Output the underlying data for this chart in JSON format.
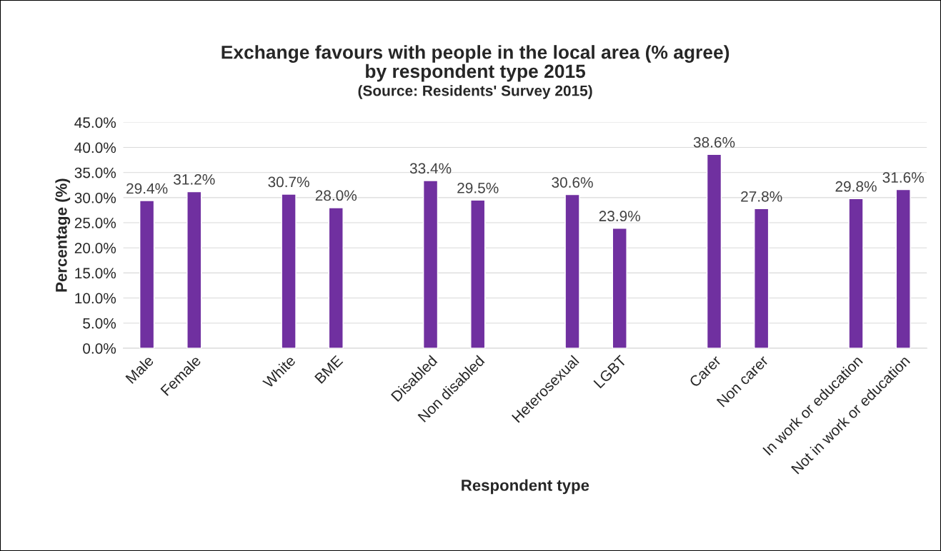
{
  "chart_data": {
    "type": "bar",
    "title": "Exchange favours with people in the local area (% agree)\nby respondent type 2015",
    "subtitle": "(Source: Residents' Survey 2015)",
    "xlabel": "Respondent type",
    "ylabel": "Percentage (%)",
    "categories": [
      "Male",
      "Female",
      null,
      "White",
      "BME",
      null,
      "Disabled",
      "Non disabled",
      null,
      "Heterosexual",
      "LGBT",
      null,
      "Carer",
      "Non carer",
      null,
      "In work or education",
      "Not in work or education"
    ],
    "values": [
      29.4,
      31.2,
      null,
      30.7,
      28.0,
      null,
      33.4,
      29.5,
      null,
      30.6,
      23.9,
      null,
      38.6,
      27.8,
      null,
      29.8,
      31.6
    ],
    "value_labels": [
      "29.4%",
      "31.2%",
      null,
      "30.7%",
      "28.0%",
      null,
      "33.4%",
      "29.5%",
      null,
      "30.6%",
      "23.9%",
      null,
      "38.6%",
      "27.8%",
      null,
      "29.8%",
      "31.6%"
    ],
    "color": "#7030a0",
    "ylim": [
      0,
      45
    ],
    "yticks": [
      {
        "value": 0,
        "label": "0.0%"
      },
      {
        "value": 5,
        "label": "5.0%"
      },
      {
        "value": 10,
        "label": "10.0%"
      },
      {
        "value": 15,
        "label": "15.0%"
      },
      {
        "value": 20,
        "label": "20.0%"
      },
      {
        "value": 25,
        "label": "25.0%"
      },
      {
        "value": 30,
        "label": "30.0%"
      },
      {
        "value": 35,
        "label": "35.0%"
      },
      {
        "value": 40,
        "label": "40.0%"
      },
      {
        "value": 45,
        "label": "45.0%"
      }
    ],
    "grid": "y",
    "legend": false
  }
}
